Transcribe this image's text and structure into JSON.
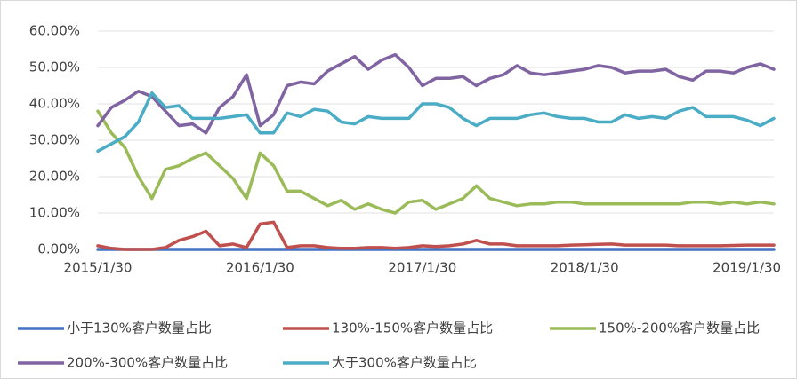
{
  "chart_data": {
    "type": "line",
    "categories": [
      "2015/1/30",
      null,
      null,
      null,
      null,
      null,
      null,
      null,
      null,
      null,
      null,
      null,
      "2016/1/30",
      null,
      null,
      null,
      null,
      null,
      null,
      null,
      null,
      null,
      null,
      null,
      "2017/1/30",
      null,
      null,
      null,
      null,
      null,
      null,
      null,
      null,
      null,
      null,
      null,
      "2018/1/30",
      null,
      null,
      null,
      null,
      null,
      null,
      null,
      null,
      null,
      null,
      null,
      "2019/1/30",
      null,
      null
    ],
    "ylim": [
      0,
      60
    ],
    "yticks": [
      {
        "value": 0,
        "label": "0.00%"
      },
      {
        "value": 10,
        "label": "10.00%"
      },
      {
        "value": 20,
        "label": "20.00%"
      },
      {
        "value": 30,
        "label": "30.00%"
      },
      {
        "value": 40,
        "label": "40.00%"
      },
      {
        "value": 50,
        "label": "50.00%"
      },
      {
        "value": 60,
        "label": "60.00%"
      }
    ],
    "grid": true,
    "legend": "bottom",
    "series": [
      {
        "name": "小于130%客户数量占比",
        "color": "#4472c4",
        "values": [
          0,
          0,
          0,
          0,
          0,
          0,
          0,
          0,
          0,
          0,
          0,
          0,
          0,
          0,
          0,
          0,
          0,
          0,
          0,
          0,
          0,
          0,
          0,
          0,
          0,
          0,
          0,
          0,
          0,
          0,
          0,
          0,
          0,
          0,
          0,
          0,
          0,
          0,
          0,
          0,
          0,
          0,
          0,
          0,
          0,
          0,
          0,
          0,
          0,
          0,
          0
        ]
      },
      {
        "name": "130%-150%客户数量占比",
        "color": "#c0504d",
        "values": [
          1,
          0.3,
          0,
          0,
          0,
          0.5,
          2.5,
          3.5,
          5,
          1,
          1.5,
          0.5,
          7,
          7.5,
          0.5,
          1,
          1,
          0.5,
          0.3,
          0.3,
          0.5,
          0.5,
          0.3,
          0.5,
          1,
          0.8,
          1,
          1.5,
          2.5,
          1.5,
          1.5,
          1,
          1,
          1,
          1,
          1.2,
          1.3,
          1.4,
          1.5,
          1.2,
          1.2,
          1.2,
          1.2,
          1,
          1,
          1,
          1,
          1.1,
          1.2,
          1.2,
          1.2
        ]
      },
      {
        "name": "150%-200%客户数量占比",
        "color": "#9bbb59",
        "values": [
          38,
          32,
          28,
          20,
          14,
          22,
          23,
          25,
          26.5,
          23,
          19.5,
          14,
          26.5,
          23,
          16,
          16,
          14,
          12,
          13.5,
          11,
          12.5,
          11,
          10,
          13,
          13.5,
          11,
          12.5,
          14,
          17.5,
          14,
          13,
          12,
          12.5,
          12.5,
          13,
          13,
          12.5,
          12.5,
          12.5,
          12.5,
          12.5,
          12.5,
          12.5,
          12.5,
          13,
          13,
          12.5,
          13,
          12.5,
          13,
          12.5
        ]
      },
      {
        "name": "200%-300%客户数量占比",
        "color": "#8064a2",
        "values": [
          34,
          39,
          41,
          43.5,
          42,
          38,
          34,
          34.5,
          32,
          39,
          42,
          48,
          34,
          37,
          45,
          46,
          45.5,
          49,
          51,
          53,
          49.5,
          52,
          53.5,
          50,
          45,
          47,
          47,
          47.5,
          45,
          47,
          48,
          50.5,
          48.5,
          48,
          48.5,
          49,
          49.5,
          50.5,
          50,
          48.5,
          49,
          49,
          49.5,
          47.5,
          46.5,
          49,
          49,
          48.5,
          50,
          51,
          49.5
        ]
      },
      {
        "name": "大于300%客户数量占比",
        "color": "#4bacc6",
        "values": [
          27,
          29,
          31,
          35,
          43,
          39,
          39.5,
          36,
          36,
          36,
          36.5,
          37,
          32,
          32,
          37.5,
          36.5,
          38.5,
          38,
          35,
          34.5,
          36.5,
          36,
          36,
          36,
          40,
          40,
          39,
          36,
          34,
          36,
          36,
          36,
          37,
          37.5,
          36.5,
          36,
          36,
          35,
          35,
          37,
          36,
          36.5,
          36,
          38,
          39,
          36.5,
          36.5,
          36.5,
          35.5,
          34,
          36
        ]
      }
    ]
  }
}
